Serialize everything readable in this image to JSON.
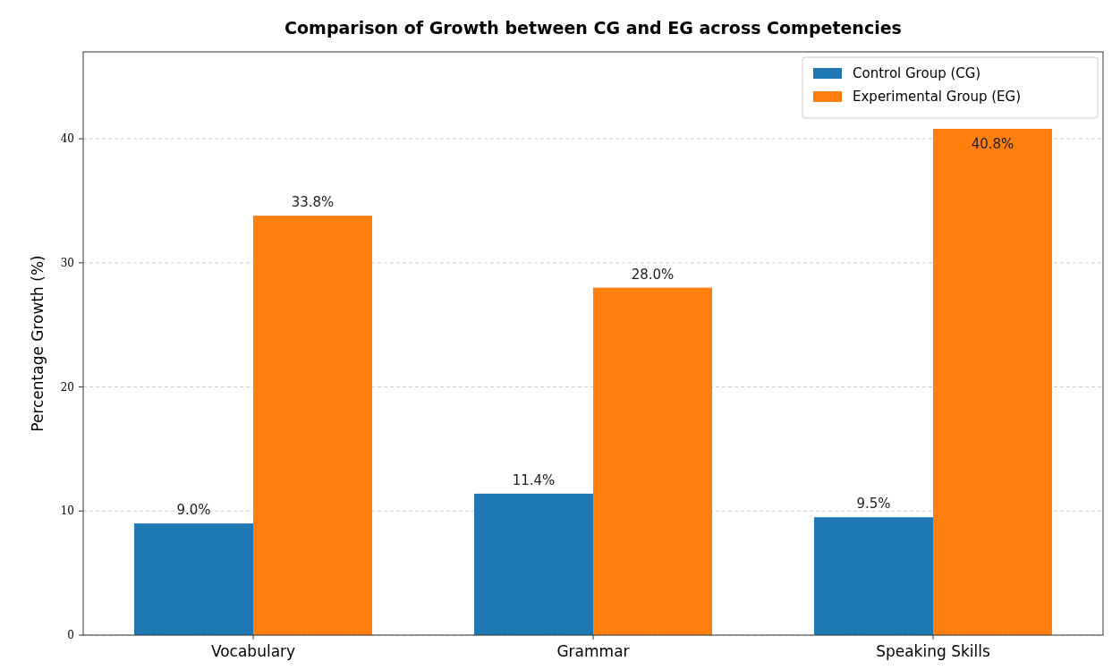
{
  "chart_data": {
    "type": "bar",
    "title": "Comparison of Growth between CG and EG across Competencies",
    "ylabel": "Percentage Growth (%)",
    "categories": [
      "Vocabulary",
      "Grammar",
      "Speaking Skills"
    ],
    "series": [
      {
        "name": "Control Group (CG)",
        "color": "#1f77b4",
        "values": [
          9.0,
          11.4,
          9.5
        ],
        "value_labels": [
          "9.0%",
          "11.4%",
          "9.5%"
        ]
      },
      {
        "name": "Experimental Group (EG)",
        "color": "#ff7f0e",
        "values": [
          33.8,
          28.0,
          40.8
        ],
        "value_labels": [
          "33.8%",
          "28.0%",
          "40.8%"
        ]
      }
    ],
    "ylim": [
      0,
      47
    ],
    "yticks": [
      0,
      10,
      20,
      30,
      40
    ],
    "grid": "y",
    "legend": "top right"
  }
}
